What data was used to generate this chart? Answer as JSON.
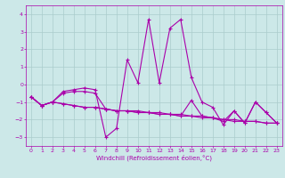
{
  "xlabel": "Windchill (Refroidissement éolien,°C)",
  "xlim": [
    -0.5,
    23.5
  ],
  "ylim": [
    -3.5,
    4.5
  ],
  "yticks": [
    -3,
    -2,
    -1,
    0,
    1,
    2,
    3,
    4
  ],
  "xticks": [
    0,
    1,
    2,
    3,
    4,
    5,
    6,
    7,
    8,
    9,
    10,
    11,
    12,
    13,
    14,
    15,
    16,
    17,
    18,
    19,
    20,
    21,
    22,
    23
  ],
  "bg_color": "#cce8e8",
  "grid_color": "#aacccc",
  "line_color": "#aa00aa",
  "line1": [
    -0.7,
    -1.2,
    -1.0,
    -0.4,
    -0.3,
    -0.2,
    -0.3,
    -3.0,
    -2.5,
    1.4,
    0.1,
    3.7,
    0.1,
    3.2,
    3.7,
    0.4,
    -1.0,
    -1.3,
    -2.3,
    -1.5,
    -2.2,
    -1.0,
    -1.6,
    -2.2
  ],
  "line2": [
    -0.7,
    -1.2,
    -1.0,
    -1.1,
    -1.2,
    -1.3,
    -1.3,
    -1.4,
    -1.5,
    -1.5,
    -1.6,
    -1.6,
    -1.7,
    -1.7,
    -1.8,
    -1.8,
    -1.9,
    -1.9,
    -2.0,
    -2.1,
    -2.1,
    -2.1,
    -2.2,
    -2.2
  ],
  "line3": [
    -0.7,
    -1.2,
    -1.0,
    -0.5,
    -0.4,
    -0.4,
    -0.5,
    -1.4,
    -1.5,
    -1.5,
    -1.5,
    -1.6,
    -1.6,
    -1.7,
    -1.7,
    -1.8,
    -1.8,
    -1.9,
    -2.0,
    -2.0,
    -2.1,
    -2.1,
    -2.2,
    -2.2
  ],
  "line4": [
    -0.7,
    -1.2,
    -1.0,
    -1.1,
    -1.2,
    -1.3,
    -1.3,
    -1.4,
    -1.5,
    -1.5,
    -1.6,
    -1.6,
    -1.7,
    -1.7,
    -1.8,
    -0.9,
    -1.8,
    -1.9,
    -2.1,
    -1.5,
    -2.2,
    -1.0,
    -1.6,
    -2.2
  ]
}
